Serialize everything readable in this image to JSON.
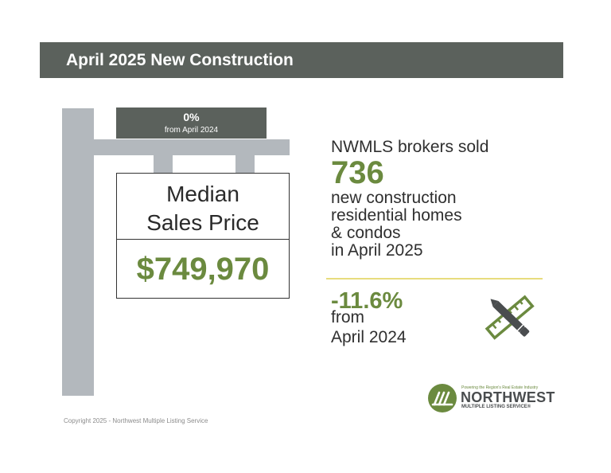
{
  "header": {
    "title": "April 2025 New Construction"
  },
  "change_tag": {
    "percent": "0%",
    "label": "from April 2024"
  },
  "sign": {
    "label_line1": "Median",
    "label_line2": "Sales Price",
    "value": "$749,970"
  },
  "sales": {
    "intro": "NWMLS brokers sold",
    "count": "736",
    "desc_line1": "new construction",
    "desc_line2": "residential homes",
    "desc_line3": "& condos",
    "desc_line4": "in April 2025",
    "change": "-11.6%",
    "change_line1": "from",
    "change_line2": "April 2024"
  },
  "icons": {
    "tools": "pencil-ruler-icon",
    "logo_mark": "nwmls-logo-icon"
  },
  "logo": {
    "tagline": "Powering the Region's Real Estate Industry",
    "name": "NORTHWEST",
    "sub": "MULTIPLE LISTING SERVICE®"
  },
  "footer": {
    "copyright": "Copyright 2025 - Northwest Multiple Listing Service"
  },
  "colors": {
    "banner": "#5b615c",
    "accent_green": "#6b8a3f",
    "post_gray": "#b3b8bd",
    "divider_yellow": "#e8dc7e"
  }
}
